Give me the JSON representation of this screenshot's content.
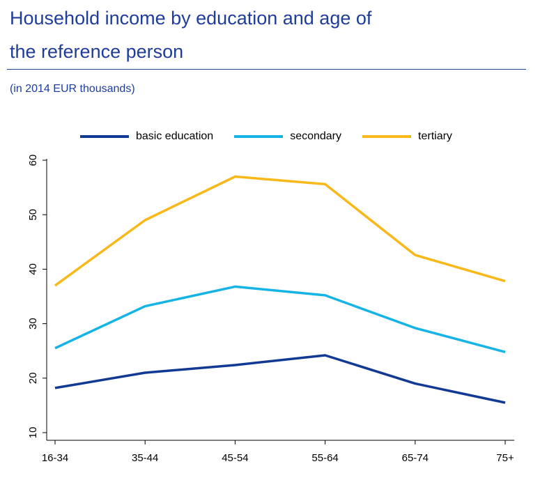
{
  "header": {
    "title_line1": "Household income by education and age of",
    "title_line2": "the reference person",
    "subtitle": "(in 2014 EUR thousands)",
    "title_color": "#1f3d99"
  },
  "chart_data": {
    "type": "line",
    "title": "Household income by education and age of the reference person",
    "subtitle": "(in 2014 EUR thousands)",
    "categories": [
      "16-34",
      "35-44",
      "45-54",
      "55-64",
      "65-74",
      "75+"
    ],
    "series": [
      {
        "name": "basic education",
        "color": "#123a94",
        "values": [
          18.2,
          21.0,
          22.4,
          24.2,
          19.0,
          15.5
        ]
      },
      {
        "name": "secondary",
        "color": "#16b4e6",
        "values": [
          25.5,
          33.2,
          36.8,
          35.2,
          29.2,
          24.8
        ]
      },
      {
        "name": "tertiary",
        "color": "#f8b81a",
        "values": [
          37.0,
          49.0,
          57.0,
          55.6,
          42.6,
          37.8
        ]
      }
    ],
    "yticks": [
      10,
      20,
      30,
      40,
      50,
      60
    ],
    "ylim": [
      10,
      60
    ],
    "xlabel": "",
    "ylabel": "",
    "grid": false,
    "legend_position": "top"
  }
}
